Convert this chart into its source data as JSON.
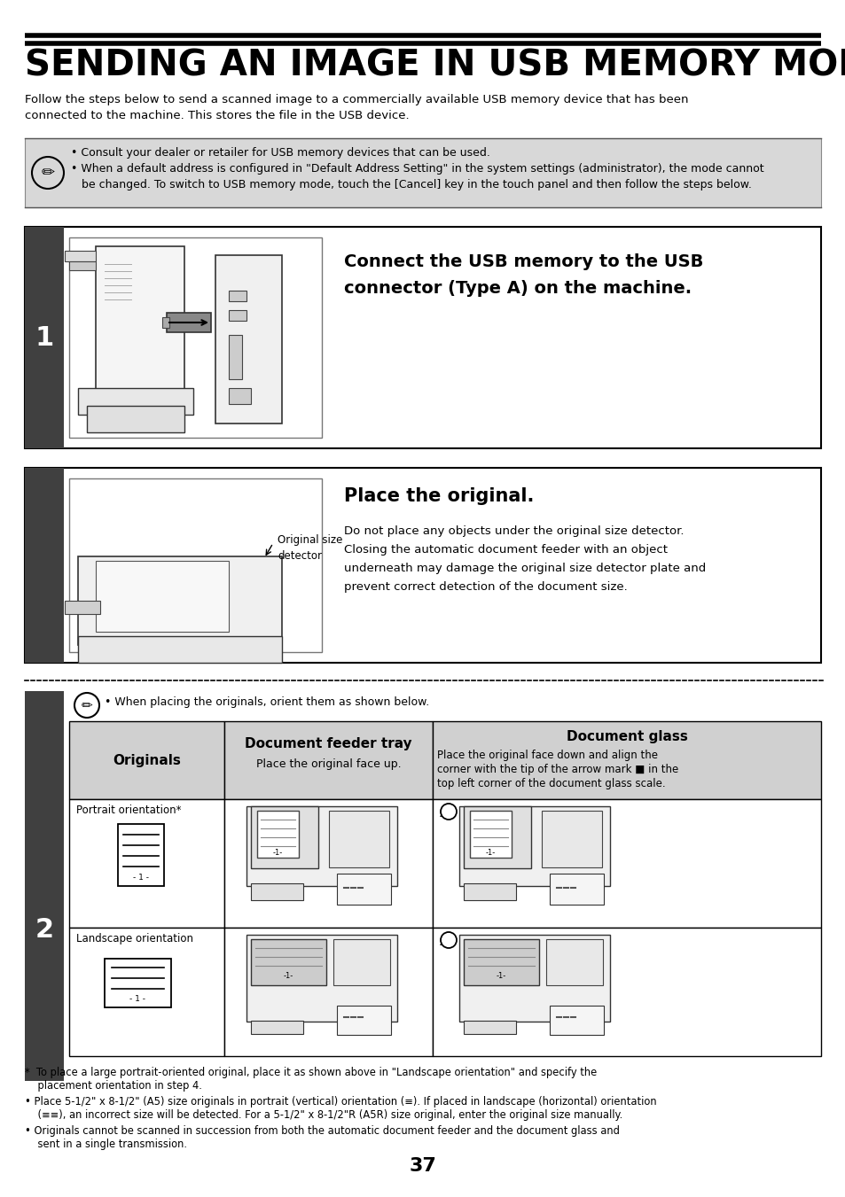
{
  "title": "SENDING AN IMAGE IN USB MEMORY MODE",
  "subtitle_line1": "Follow the steps below to send a scanned image to a commercially available USB memory device that has been",
  "subtitle_line2": "connected to the machine. This stores the file in the USB device.",
  "note_bullet1": "• Consult your dealer or retailer for USB memory devices that can be used.",
  "note_bullet2a": "• When a default address is configured in \"Default Address Setting\" in the system settings (administrator), the mode cannot",
  "note_bullet2b": "   be changed. To switch to USB memory mode, touch the [Cancel] key in the touch panel and then follow the steps below.",
  "step1_title_line1": "Connect the USB memory to the USB",
  "step1_title_line2": "connector (Type A) on the machine.",
  "step2_title": "Place the original.",
  "step2_desc_line1": "Do not place any objects under the original size detector.",
  "step2_desc_line2": "Closing the automatic document feeder with an object",
  "step2_desc_line3": "underneath may damage the original size detector plate and",
  "step2_desc_line4": "prevent correct detection of the document size.",
  "step2_img_label1": "Original size",
  "step2_img_label2": "detector",
  "note2_text": "• When placing the originals, orient them as shown below.",
  "col1_header": "Originals",
  "col2_header": "Document feeder tray",
  "col2_sub": "Place the original face up.",
  "col3_header": "Document glass",
  "col3_desc_line1": "Place the original face down and align the",
  "col3_desc_line2": "corner with the tip of the arrow mark ■ in the",
  "col3_desc_line3": "top left corner of the document glass scale.",
  "row1_label": "Portrait orientation*",
  "row2_label": "Landscape orientation",
  "footer1": "*  To place a large portrait-oriented original, place it as shown above in \"Landscape orientation\" and specify the",
  "footer1b": "    placement orientation in step 4.",
  "footer2": "• Place 5-1/2\" x 8-1/2\" (A5) size originals in portrait (vertical) orientation (≡). If placed in landscape (horizontal) orientation",
  "footer2b": "    (≡≡), an incorrect size will be detected. For a 5-1/2\" x 8-1/2\"R (A5R) size original, enter the original size manually.",
  "footer3": "• Originals cannot be scanned in succession from both the automatic document feeder and the document glass and",
  "footer3b": "    sent in a single transmission.",
  "page_num": "37",
  "bg": "#ffffff",
  "dark_bar": "#404040",
  "note_bg": "#d8d8d8",
  "table_hdr_bg": "#d0d0d0"
}
